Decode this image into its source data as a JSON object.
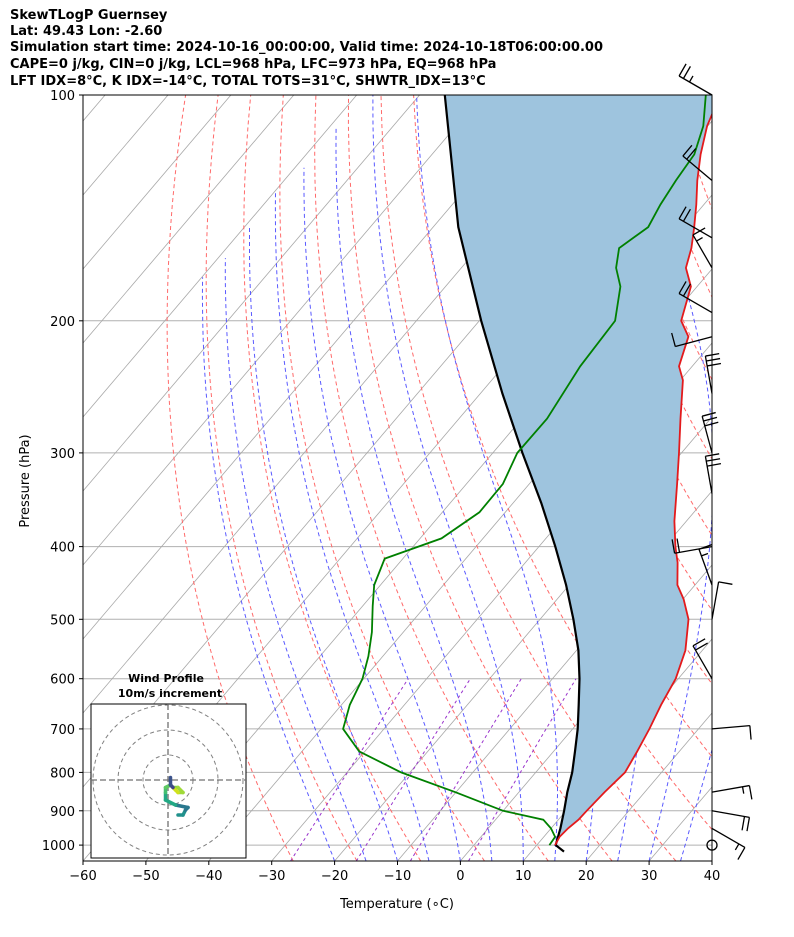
{
  "header": {
    "line1": "SkewTLogP Guernsey",
    "line2": "Lat: 49.43   Lon: -2.60",
    "line3": "Simulation start time: 2024-10-16_00:00:00, Valid time: 2024-10-18T06:00:00.00",
    "line4": "CAPE=0 j/kg, CIN=0 j/kg, LCL=968 hPa, LFC=973 hPa, EQ=968 hPa",
    "line5": "LFT IDX=8°C, K IDX=-14°C, TOTAL TOTS=31°C, SHWTR_IDX=13°C"
  },
  "chart_data": {
    "type": "line",
    "subtype": "skew-T log-P",
    "xlabel": "Temperature (∘C)",
    "ylabel": "Pressure (hPa)",
    "xlim": [
      -60,
      40
    ],
    "ylim": [
      1050,
      100
    ],
    "y_scale": "log",
    "xticks": [
      -60,
      -50,
      -40,
      -30,
      -20,
      -10,
      0,
      10,
      20,
      30,
      40
    ],
    "yticks": [
      1000,
      900,
      800,
      700,
      600,
      500,
      400,
      300,
      200,
      100
    ],
    "grid": true,
    "colors": {
      "temperature": "#e31a1c",
      "dewpoint": "#008000",
      "parcel": "#000000",
      "cape_fill": "#9ec4de",
      "dry_adiabats": "#ff6a6a",
      "moist_adiabats": "#5a5aff",
      "mixing_ratio": "#9933cc",
      "isotherms": "#a8a8a8"
    },
    "series": [
      {
        "role": "temperature",
        "points": [
          [
            1000,
            12.9
          ],
          [
            975,
            12.5
          ],
          [
            950,
            12.7
          ],
          [
            925,
            13.2
          ],
          [
            900,
            13.3
          ],
          [
            850,
            13.6
          ],
          [
            800,
            14.2
          ],
          [
            750,
            13.3
          ],
          [
            700,
            12.2
          ],
          [
            650,
            10.8
          ],
          [
            600,
            9.6
          ],
          [
            550,
            7.3
          ],
          [
            500,
            3.6
          ],
          [
            470,
            0.1
          ],
          [
            450,
            -2.8
          ],
          [
            420,
            -5.8
          ],
          [
            400,
            -8.3
          ],
          [
            370,
            -11.9
          ],
          [
            330,
            -16.5
          ],
          [
            300,
            -20.4
          ],
          [
            270,
            -24.8
          ],
          [
            240,
            -29.6
          ],
          [
            230,
            -32.1
          ],
          [
            210,
            -34.6
          ],
          [
            200,
            -37.9
          ],
          [
            180,
            -41.0
          ],
          [
            170,
            -44.3
          ],
          [
            160,
            -46.1
          ],
          [
            150,
            -48.5
          ],
          [
            140,
            -51.2
          ],
          [
            130,
            -54.3
          ],
          [
            120,
            -57.3
          ],
          [
            110,
            -60.1
          ],
          [
            100,
            -62.2
          ]
        ]
      },
      {
        "role": "dewpoint",
        "points": [
          [
            1000,
            12.0
          ],
          [
            975,
            11.8
          ],
          [
            950,
            10.0
          ],
          [
            925,
            7.6
          ],
          [
            900,
            0.0
          ],
          [
            850,
            -10.1
          ],
          [
            800,
            -21.4
          ],
          [
            750,
            -30.9
          ],
          [
            700,
            -36.5
          ],
          [
            650,
            -38.7
          ],
          [
            600,
            -40.2
          ],
          [
            560,
            -42.3
          ],
          [
            520,
            -45.0
          ],
          [
            480,
            -48.4
          ],
          [
            450,
            -51.0
          ],
          [
            415,
            -52.9
          ],
          [
            390,
            -46.6
          ],
          [
            360,
            -44.1
          ],
          [
            330,
            -44.2
          ],
          [
            300,
            -46.1
          ],
          [
            270,
            -46.0
          ],
          [
            230,
            -47.8
          ],
          [
            200,
            -48.4
          ],
          [
            180,
            -52.2
          ],
          [
            170,
            -55.4
          ],
          [
            160,
            -57.6
          ],
          [
            150,
            -55.8
          ],
          [
            140,
            -56.9
          ],
          [
            130,
            -57.7
          ],
          [
            120,
            -58.3
          ],
          [
            110,
            -60.7
          ],
          [
            100,
            -64.5
          ]
        ]
      },
      {
        "role": "parcel",
        "points": [
          [
            1020,
            15.2
          ],
          [
            1000,
            13.0
          ],
          [
            950,
            11.5
          ],
          [
            900,
            9.7
          ],
          [
            850,
            7.7
          ],
          [
            800,
            5.8
          ],
          [
            750,
            3.4
          ],
          [
            700,
            0.8
          ],
          [
            650,
            -2.3
          ],
          [
            600,
            -5.7
          ],
          [
            550,
            -9.7
          ],
          [
            500,
            -14.7
          ],
          [
            450,
            -20.5
          ],
          [
            400,
            -27.4
          ],
          [
            350,
            -35.5
          ],
          [
            300,
            -45.3
          ],
          [
            250,
            -56.5
          ],
          [
            200,
            -69.7
          ],
          [
            150,
            -86.0
          ],
          [
            100,
            -106.0
          ]
        ]
      }
    ],
    "hodograph": {
      "title": "Wind Profile",
      "subtitle": "10m/s increment",
      "u": [
        4,
        6,
        7,
        8,
        3,
        -1,
        -1,
        -1,
        1,
        2,
        4,
        6,
        4,
        3,
        2,
        1,
        1
      ],
      "v": [
        -14,
        -14,
        -12,
        -11,
        -10,
        -8,
        -5,
        -3,
        -2,
        -3,
        -3,
        -5,
        -5,
        -4,
        -3,
        -2,
        1
      ]
    },
    "wind_barbs": [
      {
        "p": 100,
        "speed_kt": 25,
        "dir": 300
      },
      {
        "p": 130,
        "speed_kt": 20,
        "dir": 310
      },
      {
        "p": 155,
        "speed_kt": 20,
        "dir": 300
      },
      {
        "p": 170,
        "speed_kt": 15,
        "dir": 330
      },
      {
        "p": 195,
        "speed_kt": 20,
        "dir": 300
      },
      {
        "p": 210,
        "speed_kt": 10,
        "dir": 255
      },
      {
        "p": 250,
        "speed_kt": 30,
        "dir": 350
      },
      {
        "p": 300,
        "speed_kt": 30,
        "dir": 345
      },
      {
        "p": 340,
        "speed_kt": 30,
        "dir": 350
      },
      {
        "p": 400,
        "speed_kt": 20,
        "dir": 260
      },
      {
        "p": 450,
        "speed_kt": 15,
        "dir": 340
      },
      {
        "p": 500,
        "speed_kt": 10,
        "dir": 10
      },
      {
        "p": 600,
        "speed_kt": 20,
        "dir": 330
      },
      {
        "p": 700,
        "speed_kt": 10,
        "dir": 85
      },
      {
        "p": 850,
        "speed_kt": 15,
        "dir": 80
      },
      {
        "p": 900,
        "speed_kt": 20,
        "dir": 100
      },
      {
        "p": 950,
        "speed_kt": 15,
        "dir": 120
      },
      {
        "p": 1000,
        "speed_kt": 0,
        "dir": 0
      }
    ]
  }
}
